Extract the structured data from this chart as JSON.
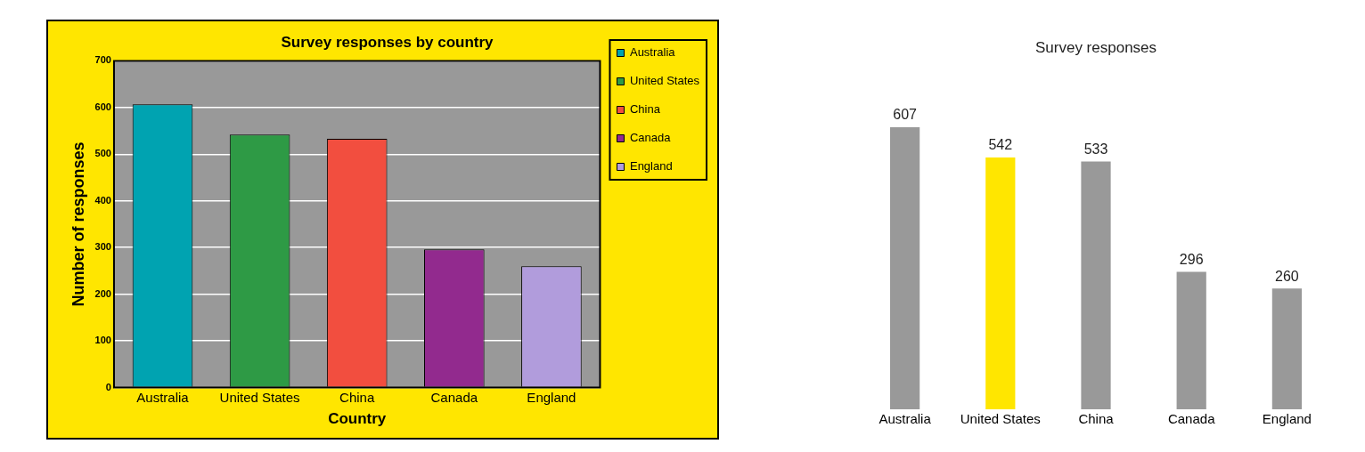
{
  "chart_data": [
    {
      "type": "bar",
      "title": "Survey responses by country",
      "xlabel": "Country",
      "ylabel": "Number of responses",
      "categories": [
        "Australia",
        "United States",
        "China",
        "Canada",
        "England"
      ],
      "series": [
        {
          "name": "Australia",
          "color": "#00a3b1",
          "values": [
            607,
            null,
            null,
            null,
            null
          ]
        },
        {
          "name": "United States",
          "color": "#2e9a45",
          "values": [
            null,
            542,
            null,
            null,
            null
          ]
        },
        {
          "name": "China",
          "color": "#f24e3f",
          "values": [
            null,
            null,
            533,
            null,
            null
          ]
        },
        {
          "name": "Canada",
          "color": "#922a8e",
          "values": [
            null,
            null,
            null,
            296,
            null
          ]
        },
        {
          "name": "England",
          "color": "#b19cdc",
          "values": [
            null,
            null,
            null,
            null,
            260
          ]
        }
      ],
      "ylim": [
        0,
        700
      ],
      "yticks": [
        0,
        100,
        200,
        300,
        400,
        500,
        600,
        700
      ],
      "grid": "y",
      "legend": "right"
    },
    {
      "type": "bar",
      "title": "Survey responses",
      "categories": [
        "Australia",
        "United States",
        "China",
        "Canada",
        "England"
      ],
      "values": [
        607,
        542,
        533,
        296,
        260
      ],
      "colors": [
        "#999999",
        "#ffe600",
        "#999999",
        "#999999",
        "#999999"
      ],
      "data_labels": true,
      "tick_labels": "x",
      "grid": false,
      "legend": false
    }
  ]
}
